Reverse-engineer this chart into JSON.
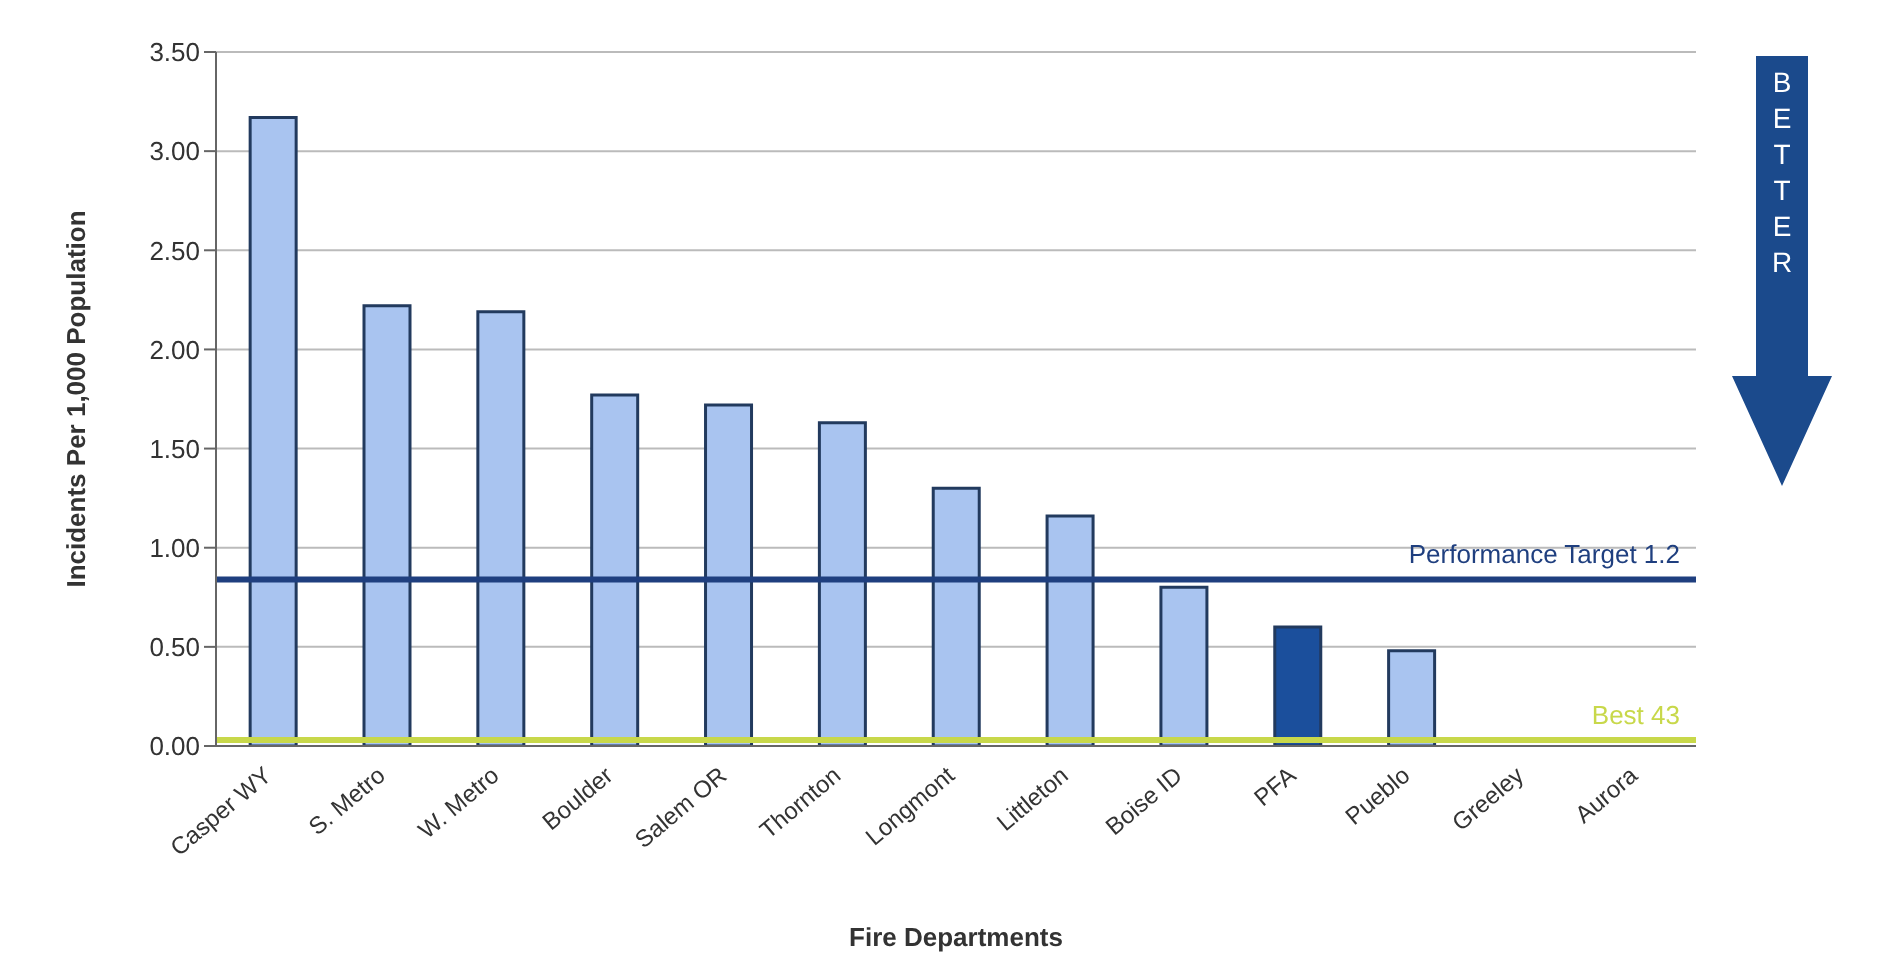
{
  "chart_data": {
    "type": "bar",
    "xlabel": "Fire Departments",
    "ylabel": "Incidents Per 1,000 Population",
    "categories": [
      "Casper WY",
      "S. Metro",
      "W. Metro",
      "Boulder",
      "Salem OR",
      "Thornton",
      "Longmont",
      "Littleton",
      "Boise ID",
      "PFA",
      "Pueblo",
      "Greeley",
      "Aurora"
    ],
    "values": [
      3.17,
      2.22,
      2.19,
      1.77,
      1.72,
      1.63,
      1.3,
      1.16,
      0.8,
      0.6,
      0.48,
      null,
      null
    ],
    "colors": [
      "#a9c4f0",
      "#a9c4f0",
      "#a9c4f0",
      "#a9c4f0",
      "#a9c4f0",
      "#a9c4f0",
      "#a9c4f0",
      "#a9c4f0",
      "#a9c4f0",
      "#1b4f9c",
      "#a9c4f0",
      "#a9c4f0",
      "#a9c4f0"
    ],
    "ylim": [
      0,
      3.5
    ],
    "yticks": [
      {
        "value": 0,
        "label": "0.00"
      },
      {
        "value": 0.5,
        "label": "0.50"
      },
      {
        "value": 1,
        "label": "1.00"
      },
      {
        "value": 1.5,
        "label": "1.50"
      },
      {
        "value": 2,
        "label": "2.00"
      },
      {
        "value": 2.5,
        "label": "2.50"
      },
      {
        "value": 3,
        "label": "3.00"
      },
      {
        "value": 3.5,
        "label": "3.50"
      }
    ],
    "grid": "y",
    "ref_lines": [
      {
        "axis": "y",
        "value": 0.84,
        "label": "Performance Target 1.2",
        "color": "#1f3f7f"
      },
      {
        "axis": "y",
        "value": 0.03,
        "label": "Best 43",
        "color": "#c8d84a"
      }
    ],
    "annotations": [
      "BETTER"
    ]
  }
}
